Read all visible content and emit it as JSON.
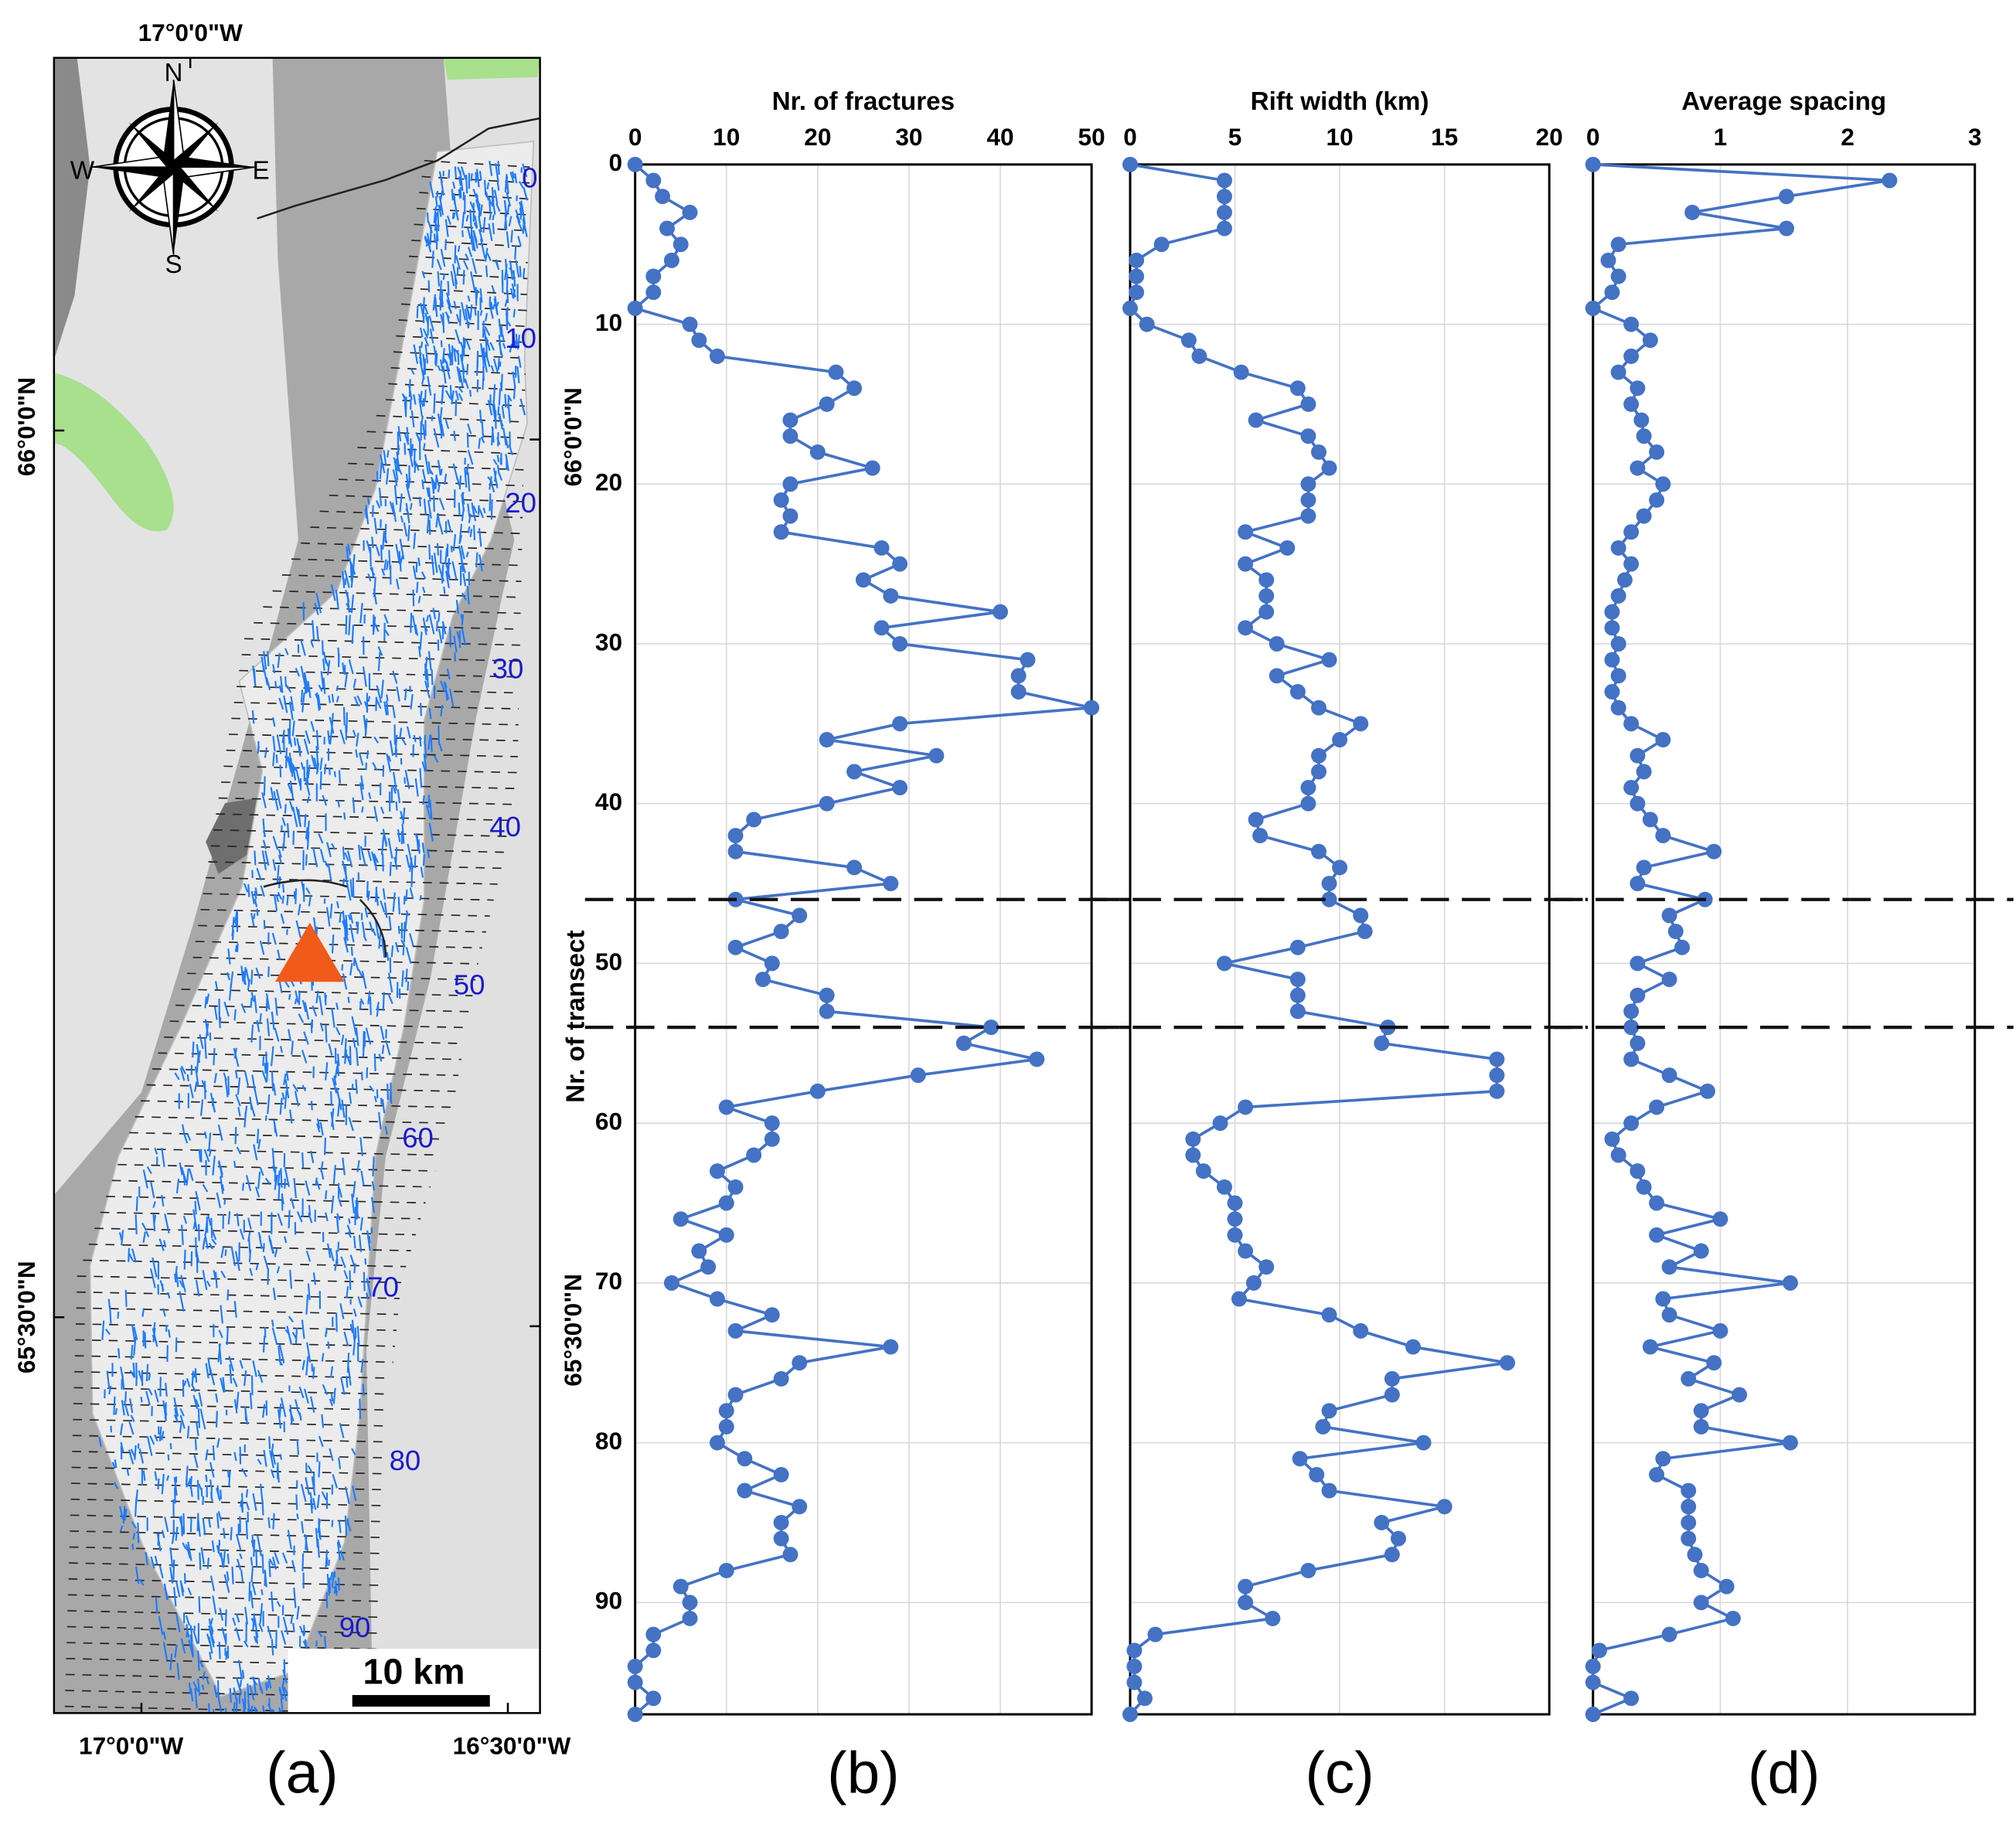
{
  "map": {
    "lon_top": "17°0'0\"W",
    "lon_bottom": [
      "17°0'0\"W",
      "16°30'0\"W"
    ],
    "lat_left": [
      "66°0'0\"N",
      "65°30'0\"N"
    ],
    "lat_right": [
      "66°0'0\"N",
      "65°30'0\"N"
    ],
    "compass": {
      "n": "N",
      "e": "E",
      "s": "S",
      "w": "W"
    },
    "transect_labels": [
      0,
      10,
      20,
      30,
      40,
      50,
      60,
      70,
      80,
      90
    ],
    "scale": "10 km",
    "panel_label": "(a)"
  },
  "chart_data": [
    {
      "type": "line",
      "xlabel": "Nr. of fractures",
      "ylabel": "Nr. of transect",
      "panel_label": "(b)",
      "color": "#4472c4",
      "xlim": [
        0,
        50
      ],
      "xticks": [
        0,
        10,
        20,
        30,
        40,
        50
      ],
      "ylim": [
        0,
        97
      ],
      "yticks": [
        0,
        10,
        20,
        30,
        40,
        50,
        60,
        70,
        80,
        90
      ],
      "yticklabels": true,
      "grid": true,
      "hlines": [
        46,
        54
      ],
      "y": [
        0,
        1,
        2,
        3,
        4,
        5,
        6,
        7,
        8,
        9,
        10,
        11,
        12,
        13,
        14,
        15,
        16,
        17,
        18,
        19,
        20,
        21,
        22,
        23,
        24,
        25,
        26,
        27,
        28,
        29,
        30,
        31,
        32,
        33,
        34,
        35,
        36,
        37,
        38,
        39,
        40,
        41,
        42,
        43,
        44,
        45,
        46,
        47,
        48,
        49,
        50,
        51,
        52,
        53,
        54,
        55,
        56,
        57,
        58,
        59,
        60,
        61,
        62,
        63,
        64,
        65,
        66,
        67,
        68,
        69,
        70,
        71,
        72,
        73,
        74,
        75,
        76,
        77,
        78,
        79,
        80,
        81,
        82,
        83,
        84,
        85,
        86,
        87,
        88,
        89,
        90,
        91,
        92,
        93,
        94,
        95,
        96,
        97
      ],
      "values": [
        0,
        2,
        3,
        6,
        3.5,
        5,
        4,
        2,
        2,
        0,
        6,
        7,
        9,
        22,
        24,
        21,
        17,
        17,
        20,
        26,
        17,
        16,
        17,
        16,
        27,
        29,
        25,
        28,
        40,
        27,
        29,
        43,
        42,
        42,
        50,
        29,
        21,
        33,
        24,
        29,
        21,
        13,
        11,
        11,
        24,
        28,
        11,
        18,
        16,
        11,
        15,
        14,
        21,
        21,
        39,
        36,
        44,
        31,
        20,
        10,
        15,
        15,
        13,
        9,
        11,
        10,
        5,
        10,
        7,
        8,
        4,
        9,
        15,
        11,
        28,
        18,
        16,
        11,
        10,
        10,
        9,
        12,
        16,
        12,
        18,
        16,
        16,
        17,
        10,
        5,
        6,
        6,
        2,
        2,
        0,
        0,
        2,
        0
      ]
    },
    {
      "type": "line",
      "xlabel": "Rift width (km)",
      "panel_label": "(c)",
      "color": "#4472c4",
      "xlim": [
        0,
        20
      ],
      "xticks": [
        0,
        5,
        10,
        15,
        20
      ],
      "ylim": [
        0,
        97
      ],
      "yticks": [
        0,
        10,
        20,
        30,
        40,
        50,
        60,
        70,
        80,
        90
      ],
      "yticklabels": false,
      "grid": true,
      "hlines": [
        46,
        54
      ],
      "y": [
        0,
        1,
        2,
        3,
        4,
        5,
        6,
        7,
        8,
        9,
        10,
        11,
        12,
        13,
        14,
        15,
        16,
        17,
        18,
        19,
        20,
        21,
        22,
        23,
        24,
        25,
        26,
        27,
        28,
        29,
        30,
        31,
        32,
        33,
        34,
        35,
        36,
        37,
        38,
        39,
        40,
        41,
        42,
        43,
        44,
        45,
        46,
        47,
        48,
        49,
        50,
        51,
        52,
        53,
        54,
        55,
        56,
        57,
        58,
        59,
        60,
        61,
        62,
        63,
        64,
        65,
        66,
        67,
        68,
        69,
        70,
        71,
        72,
        73,
        74,
        75,
        76,
        77,
        78,
        79,
        80,
        81,
        82,
        83,
        84,
        85,
        86,
        87,
        88,
        89,
        90,
        91,
        92,
        93,
        94,
        95,
        96,
        97
      ],
      "values": [
        0,
        4.5,
        4.5,
        4.5,
        4.5,
        1.5,
        0.3,
        0.3,
        0.3,
        0,
        0.8,
        2.8,
        3.3,
        5.3,
        8,
        8.5,
        6,
        8.5,
        9,
        9.5,
        8.5,
        8.5,
        8.5,
        5.5,
        7.5,
        5.5,
        6.5,
        6.5,
        6.5,
        5.5,
        7,
        9.5,
        7,
        8,
        9,
        11,
        10,
        9,
        9,
        8.5,
        8.5,
        6,
        6.2,
        9,
        10,
        9.5,
        9.5,
        11,
        11.2,
        8,
        4.5,
        8,
        8,
        8,
        12.3,
        12,
        17.5,
        17.5,
        17.5,
        5.5,
        4.3,
        3,
        3,
        3.5,
        4.5,
        5,
        5,
        5,
        5.5,
        6.5,
        5.9,
        5.2,
        9.5,
        11,
        13.5,
        18,
        12.5,
        12.5,
        9.5,
        9.2,
        14,
        8.1,
        8.9,
        9.5,
        15,
        12,
        12.8,
        12.5,
        8.5,
        5.5,
        5.5,
        6.8,
        1.2,
        0.2,
        0.2,
        0.2,
        0.7,
        0
      ]
    },
    {
      "type": "line",
      "xlabel": "Average spacing",
      "panel_label": "(d)",
      "color": "#4472c4",
      "xlim": [
        0,
        3
      ],
      "xticks": [
        0,
        1,
        2,
        3
      ],
      "ylim": [
        0,
        97
      ],
      "yticks": [
        0,
        10,
        20,
        30,
        40,
        50,
        60,
        70,
        80,
        90
      ],
      "yticklabels": false,
      "grid": true,
      "hlines": [
        46,
        54
      ],
      "y": [
        0,
        1,
        2,
        3,
        4,
        5,
        6,
        7,
        8,
        9,
        10,
        11,
        12,
        13,
        14,
        15,
        16,
        17,
        18,
        19,
        20,
        21,
        22,
        23,
        24,
        25,
        26,
        27,
        28,
        29,
        30,
        31,
        32,
        33,
        34,
        35,
        36,
        37,
        38,
        39,
        40,
        41,
        42,
        43,
        44,
        45,
        46,
        47,
        48,
        49,
        50,
        51,
        52,
        53,
        54,
        55,
        56,
        57,
        58,
        59,
        60,
        61,
        62,
        63,
        64,
        65,
        66,
        67,
        68,
        69,
        70,
        71,
        72,
        73,
        74,
        75,
        76,
        77,
        78,
        79,
        80,
        81,
        82,
        83,
        84,
        85,
        86,
        87,
        88,
        89,
        90,
        91,
        92,
        93,
        94,
        95,
        96,
        97
      ],
      "values": [
        0,
        2.33,
        1.52,
        0.78,
        1.52,
        0.2,
        0.12,
        0.2,
        0.15,
        0,
        0.3,
        0.45,
        0.3,
        0.2,
        0.35,
        0.3,
        0.38,
        0.4,
        0.5,
        0.35,
        0.55,
        0.5,
        0.4,
        0.3,
        0.2,
        0.3,
        0.25,
        0.2,
        0.15,
        0.15,
        0.2,
        0.15,
        0.2,
        0.15,
        0.2,
        0.3,
        0.55,
        0.35,
        0.4,
        0.3,
        0.35,
        0.45,
        0.55,
        0.95,
        0.4,
        0.35,
        0.88,
        0.6,
        0.65,
        0.7,
        0.35,
        0.6,
        0.35,
        0.3,
        0.3,
        0.35,
        0.3,
        0.6,
        0.9,
        0.5,
        0.3,
        0.15,
        0.2,
        0.35,
        0.4,
        0.5,
        1.0,
        0.5,
        0.85,
        0.6,
        1.55,
        0.55,
        0.6,
        1.0,
        0.45,
        0.95,
        0.75,
        1.15,
        0.85,
        0.85,
        1.55,
        0.55,
        0.5,
        0.75,
        0.75,
        0.75,
        0.75,
        0.8,
        0.85,
        1.05,
        0.85,
        1.1,
        0.6,
        0.05,
        0,
        0,
        0.3,
        0
      ]
    }
  ]
}
